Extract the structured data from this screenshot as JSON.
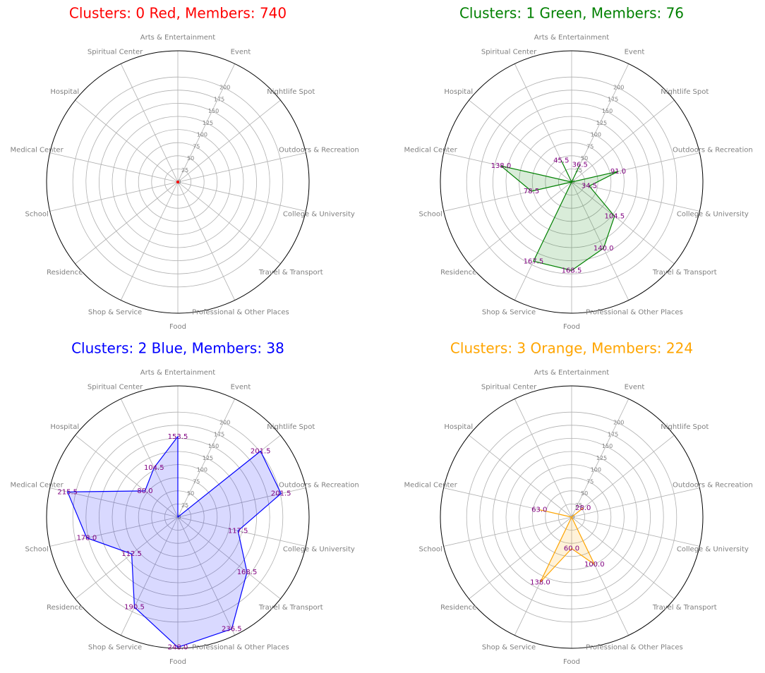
{
  "chart_data": [
    {
      "type": "radar",
      "title": "Clusters: 0 Red, Members: 740",
      "color": "red",
      "categories": [
        "Arts & Entertainment",
        "Event",
        "Nightlife Spot",
        "Outdoors & Recreation",
        "College & University",
        "Travel & Transport",
        "Professional & Other Places",
        "Food",
        "Shop & Service",
        "Residence",
        "School",
        "Medical Center",
        "Hospital",
        "Spiritual Center"
      ],
      "values": [
        0,
        0,
        0,
        0,
        0,
        0,
        0,
        0,
        0,
        0,
        0,
        0,
        0,
        0
      ],
      "ylim": [
        0,
        250
      ],
      "yticks": [
        0,
        25,
        50,
        75,
        100,
        125,
        150,
        175,
        200
      ]
    },
    {
      "type": "radar",
      "title": "Clusters: 1 Green, Members: 76",
      "color": "green",
      "categories": [
        "Arts & Entertainment",
        "Event",
        "Nightlife Spot",
        "Outdoors & Recreation",
        "College & University",
        "Travel & Transport",
        "Professional & Other Places",
        "Food",
        "Shop & Service",
        "Residence",
        "School",
        "Medical Center",
        "Hospital",
        "Spiritual Center"
      ],
      "values": [
        0,
        36.5,
        0,
        91,
        34.5,
        104.5,
        140,
        168.5,
        167.5,
        0,
        78.5,
        138,
        0,
        45.5
      ],
      "value_labels": [
        null,
        "36.5",
        null,
        "91.0",
        "34.5",
        "104.5",
        "140.0",
        "168.5",
        "167.5",
        null,
        "78.5",
        "138.0",
        null,
        "45.5"
      ],
      "ylim": [
        0,
        250
      ],
      "yticks": [
        0,
        25,
        50,
        75,
        100,
        125,
        150,
        175,
        200
      ]
    },
    {
      "type": "radar",
      "title": "Clusters: 2 Blue, Members: 38",
      "color": "blue",
      "categories": [
        "Arts & Entertainment",
        "Event",
        "Nightlife Spot",
        "Outdoors & Recreation",
        "College & University",
        "Travel & Transport",
        "Professional & Other Places",
        "Food",
        "Shop & Service",
        "Residence",
        "School",
        "Medical Center",
        "Hospital",
        "Spiritual Center"
      ],
      "values": [
        153.5,
        0,
        201.5,
        201.5,
        117.5,
        168.5,
        236.5,
        248,
        190.5,
        112.5,
        178,
        215.5,
        80,
        104.5
      ],
      "value_labels": [
        "153.5",
        null,
        "201.5",
        "201.5",
        "117.5",
        "168.5",
        "236.5",
        "248.0",
        "190.5",
        "112.5",
        "178.0",
        "215.5",
        "80.0",
        "104.5"
      ],
      "ylim": [
        0,
        250
      ],
      "yticks": [
        0,
        25,
        50,
        75,
        100,
        125,
        150,
        175,
        200
      ]
    },
    {
      "type": "radar",
      "title": "Clusters: 3 Orange, Members: 224",
      "color": "orange",
      "categories": [
        "Arts & Entertainment",
        "Event",
        "Nightlife Spot",
        "Outdoors & Recreation",
        "College & University",
        "Travel & Transport",
        "Professional & Other Places",
        "Food",
        "Shop & Service",
        "Residence",
        "School",
        "Medical Center",
        "Hospital",
        "Spiritual Center"
      ],
      "values": [
        0,
        0,
        28,
        0,
        0,
        0,
        100,
        60,
        138,
        0,
        0,
        63,
        0,
        0
      ],
      "value_labels": [
        null,
        null,
        "28.0",
        null,
        null,
        null,
        "100.0",
        "60.0",
        "138.0",
        null,
        null,
        "63.0",
        null,
        null
      ],
      "ylim": [
        0,
        250
      ],
      "yticks": [
        0,
        25,
        50,
        75,
        100,
        125,
        150,
        175,
        200
      ]
    }
  ]
}
